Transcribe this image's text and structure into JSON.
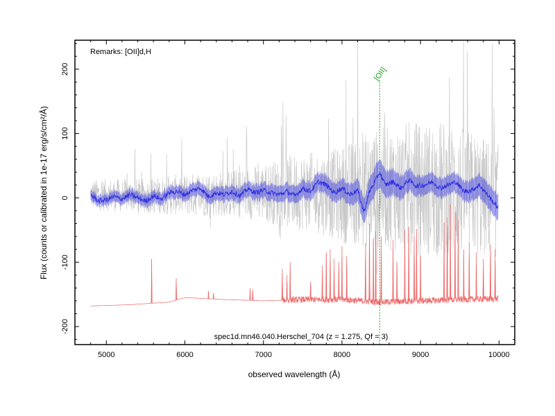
{
  "chart_data": {
    "type": "line",
    "title": "",
    "remarks": "Remarks: [OII]d,H",
    "caption": "spec1d.mn46.040.Herschel_704 (z = 1.275, Qf = 3)",
    "xlabel": "observed wavelength (Å)",
    "ylabel": "Flux (counts or calibrated in 1e-17 erg/s/cm²/Å)",
    "xlim": [
      4600,
      10200
    ],
    "ylim": [
      -228,
      245
    ],
    "x_ticks": [
      5000,
      6000,
      7000,
      8000,
      9000,
      10000
    ],
    "x_tick_labels": [
      "5000",
      "6000",
      "7000",
      "8000",
      "9000",
      "10000"
    ],
    "y_ticks": [
      -200,
      -100,
      0,
      100,
      200
    ],
    "y_tick_labels": [
      "-200",
      "-100",
      "0",
      "100",
      "200"
    ],
    "x_minor_step": 200,
    "y_minor_step": 20,
    "wavelength_range": [
      4800,
      9990
    ],
    "line_markers": [
      {
        "label": "[OII]",
        "x": 8480,
        "y_top": 180,
        "y_bottom": -228,
        "color": "#1a9a1a"
      }
    ],
    "series": [
      {
        "role": "raw_flux",
        "color": "#c8c8c8",
        "description_points": [
          [
            4800,
            5
          ],
          [
            5500,
            3
          ],
          [
            6000,
            5
          ],
          [
            7000,
            8
          ],
          [
            7500,
            10
          ],
          [
            8000,
            5
          ],
          [
            8480,
            15
          ],
          [
            9000,
            15
          ],
          [
            9500,
            10
          ],
          [
            9990,
            -5
          ]
        ],
        "noise_amplitude_points": [
          [
            4800,
            40
          ],
          [
            5500,
            45
          ],
          [
            6000,
            55
          ],
          [
            6500,
            60
          ],
          [
            7000,
            75
          ],
          [
            7300,
            95
          ],
          [
            7800,
            110
          ],
          [
            8300,
            150
          ],
          [
            8800,
            170
          ],
          [
            9300,
            180
          ],
          [
            9990,
            150
          ]
        ]
      },
      {
        "role": "smoothed_flux",
        "color": "#3030e0",
        "points": [
          [
            4800,
            5
          ],
          [
            4900,
            -5
          ],
          [
            5000,
            -3
          ],
          [
            5100,
            2
          ],
          [
            5200,
            -2
          ],
          [
            5300,
            5
          ],
          [
            5400,
            0
          ],
          [
            5500,
            -5
          ],
          [
            5600,
            3
          ],
          [
            5700,
            -2
          ],
          [
            5800,
            8
          ],
          [
            5900,
            10
          ],
          [
            6000,
            5
          ],
          [
            6100,
            12
          ],
          [
            6200,
            15
          ],
          [
            6300,
            2
          ],
          [
            6400,
            8
          ],
          [
            6500,
            5
          ],
          [
            6600,
            10
          ],
          [
            6700,
            3
          ],
          [
            6800,
            14
          ],
          [
            6900,
            8
          ],
          [
            7000,
            12
          ],
          [
            7100,
            8
          ],
          [
            7200,
            5
          ],
          [
            7300,
            10
          ],
          [
            7400,
            3
          ],
          [
            7500,
            15
          ],
          [
            7600,
            10
          ],
          [
            7700,
            25
          ],
          [
            7800,
            20
          ],
          [
            7900,
            8
          ],
          [
            8000,
            15
          ],
          [
            8100,
            5
          ],
          [
            8200,
            12
          ],
          [
            8280,
            -22
          ],
          [
            8350,
            10
          ],
          [
            8420,
            25
          ],
          [
            8480,
            40
          ],
          [
            8550,
            20
          ],
          [
            8650,
            25
          ],
          [
            8750,
            15
          ],
          [
            8850,
            28
          ],
          [
            8950,
            18
          ],
          [
            9050,
            20
          ],
          [
            9150,
            25
          ],
          [
            9250,
            15
          ],
          [
            9350,
            20
          ],
          [
            9450,
            25
          ],
          [
            9550,
            10
          ],
          [
            9650,
            12
          ],
          [
            9750,
            20
          ],
          [
            9850,
            5
          ],
          [
            9950,
            -10
          ],
          [
            9990,
            -15
          ]
        ],
        "error_band": [
          [
            4800,
            8
          ],
          [
            6000,
            10
          ],
          [
            7000,
            12
          ],
          [
            8000,
            15
          ],
          [
            8480,
            22
          ],
          [
            9000,
            15
          ],
          [
            9500,
            15
          ],
          [
            9990,
            20
          ]
        ]
      },
      {
        "role": "sky_spectrum",
        "color": "#ee6666",
        "baseline_points": [
          [
            4800,
            -168
          ],
          [
            5300,
            -166
          ],
          [
            5800,
            -162
          ],
          [
            6000,
            -155
          ],
          [
            6500,
            -158
          ],
          [
            7000,
            -160
          ],
          [
            7500,
            -158
          ],
          [
            8000,
            -158
          ],
          [
            8500,
            -162
          ],
          [
            9000,
            -160
          ],
          [
            9500,
            -158
          ],
          [
            9990,
            -157
          ]
        ],
        "emission_lines": [
          [
            5577,
            -95
          ],
          [
            5890,
            -125
          ],
          [
            6300,
            -145
          ],
          [
            6364,
            -148
          ],
          [
            6830,
            -140
          ],
          [
            6865,
            -142
          ],
          [
            7240,
            -110
          ],
          [
            7300,
            -120
          ],
          [
            7340,
            -100
          ],
          [
            7600,
            -130
          ],
          [
            7750,
            -105
          ],
          [
            7800,
            -85
          ],
          [
            7850,
            -80
          ],
          [
            7900,
            -95
          ],
          [
            7960,
            -100
          ],
          [
            8000,
            -75
          ],
          [
            8060,
            -90
          ],
          [
            8300,
            -70
          ],
          [
            8350,
            -40
          ],
          [
            8400,
            -65
          ],
          [
            8430,
            -52
          ],
          [
            8500,
            -60
          ],
          [
            8650,
            -65
          ],
          [
            8700,
            -100
          ],
          [
            8800,
            -50
          ],
          [
            8850,
            -45
          ],
          [
            8920,
            -60
          ],
          [
            8950,
            -48
          ],
          [
            9000,
            -90
          ],
          [
            9300,
            -40
          ],
          [
            9340,
            -30
          ],
          [
            9380,
            -10
          ],
          [
            9440,
            -22
          ],
          [
            9480,
            -35
          ],
          [
            9550,
            -80
          ],
          [
            9620,
            -70
          ],
          [
            9710,
            -85
          ],
          [
            9800,
            -95
          ],
          [
            9890,
            -72
          ],
          [
            9950,
            -80
          ]
        ]
      }
    ],
    "grid": false,
    "legend": "none"
  }
}
